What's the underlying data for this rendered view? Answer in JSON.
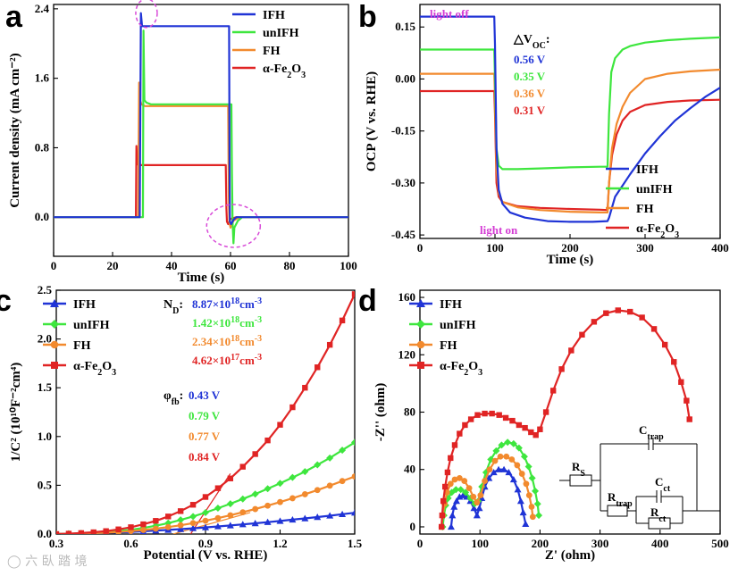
{
  "chart_data": [
    {
      "panel": "a",
      "type": "line",
      "xlabel": "Time (s)",
      "ylabel": "Current density (mA cm⁻²)",
      "xlim": [
        0,
        100
      ],
      "ylim": [
        -0.45,
        2.45
      ],
      "xticks": [
        0,
        20,
        40,
        60,
        80,
        100
      ],
      "yticks": [
        0.0,
        0.8,
        1.6,
        2.4
      ],
      "ytick_labels": [
        "0.0",
        "0.8",
        "1.6",
        "2.4"
      ],
      "legend_position": "top-right",
      "series": [
        {
          "name": "IFH",
          "color": "#2034d6",
          "x": [
            0,
            29.2,
            29.6,
            30.0,
            30.6,
            59.5,
            59.7,
            59.8,
            60.2,
            61,
            62,
            64,
            100
          ],
          "y": [
            0,
            0,
            2.35,
            2.2,
            2.2,
            2.2,
            0.4,
            -0.05,
            -0.08,
            -0.03,
            0,
            0,
            0
          ]
        },
        {
          "name": "unIFH",
          "color": "#3ee63e",
          "x": [
            0,
            30.3,
            30.5,
            30.8,
            31.5,
            33,
            60.3,
            60.5,
            60.7,
            61,
            61.3,
            62.5,
            64,
            100
          ],
          "y": [
            0,
            0,
            2.15,
            1.35,
            1.32,
            1.3,
            1.3,
            0.5,
            -0.05,
            -0.3,
            -0.12,
            -0.04,
            0,
            0
          ]
        },
        {
          "name": "FH",
          "color": "#f28a2e",
          "x": [
            0,
            28.7,
            29,
            29.3,
            29.8,
            31,
            59.2,
            59.4,
            59.6,
            60,
            61,
            63,
            100
          ],
          "y": [
            0,
            0,
            1.55,
            1.35,
            1.3,
            1.28,
            1.28,
            0.3,
            -0.05,
            -0.12,
            -0.04,
            0,
            0
          ]
        },
        {
          "name": "α-Fe₂O₃",
          "color": "#e02424",
          "x": [
            0,
            27.9,
            28.1,
            28.3,
            28.8,
            30,
            58.4,
            58.6,
            58.8,
            59.2,
            60,
            62,
            100
          ],
          "y": [
            0,
            0,
            0.82,
            0.62,
            0.6,
            0.6,
            0.6,
            0.1,
            -0.05,
            -0.08,
            -0.02,
            0,
            0
          ]
        }
      ],
      "annotations": [
        "dashed circle near spike at t≈30 s",
        "dashed circle near transient at t≈60 s"
      ]
    },
    {
      "panel": "b",
      "type": "line",
      "xlabel": "Time (s)",
      "ylabel": "OCP (V vs. RHE)",
      "xlim": [
        0,
        400
      ],
      "ylim": [
        -0.46,
        0.215
      ],
      "xticks": [
        0,
        100,
        200,
        300,
        400
      ],
      "yticks": [
        -0.45,
        -0.3,
        -0.15,
        0.0,
        0.15
      ],
      "ytick_labels": [
        "-0.45",
        "-0.30",
        "-0.15",
        "0.00",
        "0.15"
      ],
      "legend_position": "bottom-right",
      "text": {
        "light_off": "light off",
        "light_on": "light on",
        "delta_voc_title": "△V",
        "delta_voc_sub": "OC",
        "delta_voc_colon": ":"
      },
      "delta_voc": [
        {
          "series": "IFH",
          "label": "0.56 V",
          "color": "#2034d6"
        },
        {
          "series": "unIFH",
          "label": "0.35 V",
          "color": "#3ee63e"
        },
        {
          "series": "FH",
          "label": "0.36 V",
          "color": "#f28a2e"
        },
        {
          "series": "α-Fe₂O₃",
          "label": "0.31 V",
          "color": "#e02424"
        }
      ],
      "series": [
        {
          "name": "IFH",
          "color": "#2034d6",
          "x": [
            0,
            99,
            100,
            102,
            105,
            110,
            120,
            140,
            170,
            200,
            230,
            250,
            252,
            260,
            280,
            300,
            320,
            340,
            360,
            380,
            400
          ],
          "y": [
            0.18,
            0.18,
            0.1,
            -0.2,
            -0.32,
            -0.36,
            -0.385,
            -0.4,
            -0.41,
            -0.412,
            -0.412,
            -0.41,
            -0.4,
            -0.34,
            -0.275,
            -0.215,
            -0.165,
            -0.12,
            -0.085,
            -0.052,
            -0.025
          ]
        },
        {
          "name": "unIFH",
          "color": "#3ee63e",
          "x": [
            0,
            99,
            100,
            102,
            105,
            110,
            130,
            160,
            200,
            240,
            250,
            252,
            255,
            260,
            270,
            280,
            300,
            330,
            360,
            400
          ],
          "y": [
            0.085,
            0.085,
            0.0,
            -0.2,
            -0.25,
            -0.26,
            -0.26,
            -0.258,
            -0.255,
            -0.253,
            -0.253,
            -0.1,
            0.02,
            0.06,
            0.085,
            0.095,
            0.105,
            0.112,
            0.116,
            0.12
          ]
        },
        {
          "name": "FH",
          "color": "#f28a2e",
          "x": [
            0,
            99,
            100,
            102,
            105,
            110,
            130,
            160,
            200,
            240,
            250,
            252,
            256,
            262,
            270,
            280,
            300,
            330,
            360,
            400
          ],
          "y": [
            0.015,
            0.015,
            -0.05,
            -0.26,
            -0.33,
            -0.355,
            -0.37,
            -0.378,
            -0.383,
            -0.385,
            -0.385,
            -0.3,
            -0.2,
            -0.13,
            -0.08,
            -0.04,
            0.0,
            0.015,
            0.022,
            0.027
          ]
        },
        {
          "name": "α-Fe₂O₃",
          "color": "#e02424",
          "x": [
            0,
            99,
            100,
            102,
            105,
            110,
            130,
            160,
            200,
            240,
            250,
            252,
            256,
            262,
            270,
            280,
            300,
            330,
            360,
            400
          ],
          "y": [
            -0.035,
            -0.035,
            -0.1,
            -0.3,
            -0.34,
            -0.355,
            -0.367,
            -0.372,
            -0.375,
            -0.377,
            -0.378,
            -0.3,
            -0.22,
            -0.16,
            -0.12,
            -0.095,
            -0.075,
            -0.066,
            -0.062,
            -0.06
          ]
        }
      ]
    },
    {
      "panel": "c",
      "type": "line",
      "xlabel": "Potential (V vs. RHE)",
      "ylabel": "1/C² (10¹⁰F⁻²cm⁴)",
      "xlim": [
        0.3,
        1.5
      ],
      "ylim": [
        0,
        2.5
      ],
      "xticks": [
        0.3,
        0.6,
        0.9,
        1.2,
        1.5
      ],
      "xtick_labels": [
        "0.3",
        "0.6",
        "0.9",
        "1.2",
        "1.5"
      ],
      "yticks": [
        0.0,
        0.5,
        1.0,
        1.5,
        2.0,
        2.5
      ],
      "ytick_labels": [
        "0.0",
        "0.5",
        "1.0",
        "1.5",
        "2.0",
        "2.5"
      ],
      "legend_position": "top-left",
      "text": {
        "nd_label": "N",
        "nd_sub": "D",
        "nd_colon": ":",
        "phi_label": "φ",
        "phi_sub": "fb",
        "phi_colon": ":"
      },
      "nd": [
        {
          "series": "IFH",
          "mant": "8.87×10",
          "exp": "18",
          "unit": "cm",
          "unit_exp": "-3",
          "color": "#2034d6"
        },
        {
          "series": "unIFH",
          "mant": "1.42×10",
          "exp": "18",
          "unit": "cm",
          "unit_exp": "-3",
          "color": "#3ee63e"
        },
        {
          "series": "FH",
          "mant": "2.34×10",
          "exp": "18",
          "unit": "cm",
          "unit_exp": "-3",
          "color": "#f28a2e"
        },
        {
          "series": "α-Fe₂O₃",
          "mant": "4.62×10",
          "exp": "17",
          "unit": "cm",
          "unit_exp": "-3",
          "color": "#e02424"
        }
      ],
      "phi_fb": [
        {
          "series": "IFH",
          "label": "0.43 V",
          "color": "#2034d6"
        },
        {
          "series": "unIFH",
          "label": "0.79 V",
          "color": "#3ee63e"
        },
        {
          "series": "FH",
          "label": "0.77 V",
          "color": "#f28a2e"
        },
        {
          "series": "α-Fe₂O₃",
          "label": "0.84 V",
          "color": "#e02424"
        }
      ],
      "fit_lines": [
        {
          "color": "#e02424",
          "x": [
            0.84,
            1.0
          ],
          "y": [
            0.0,
            0.62
          ]
        },
        {
          "color": "#f28a2e",
          "x": [
            0.77,
            1.08
          ],
          "y": [
            0.0,
            0.22
          ]
        }
      ],
      "series": [
        {
          "name": "IFH",
          "color": "#2034d6",
          "marker": "triangle",
          "x": [
            0.3,
            0.35,
            0.4,
            0.45,
            0.5,
            0.55,
            0.6,
            0.65,
            0.7,
            0.75,
            0.8,
            0.85,
            0.9,
            0.95,
            1.0,
            1.05,
            1.1,
            1.15,
            1.2,
            1.25,
            1.3,
            1.35,
            1.4,
            1.45,
            1.5
          ],
          "y": [
            0.0,
            0.002,
            0.005,
            0.008,
            0.012,
            0.017,
            0.022,
            0.028,
            0.035,
            0.042,
            0.05,
            0.059,
            0.068,
            0.078,
            0.088,
            0.099,
            0.11,
            0.122,
            0.134,
            0.147,
            0.16,
            0.174,
            0.188,
            0.203,
            0.218
          ]
        },
        {
          "name": "unIFH",
          "color": "#3ee63e",
          "marker": "diamond",
          "x": [
            0.3,
            0.35,
            0.4,
            0.45,
            0.5,
            0.55,
            0.6,
            0.65,
            0.7,
            0.75,
            0.8,
            0.85,
            0.9,
            0.95,
            1.0,
            1.05,
            1.1,
            1.15,
            1.2,
            1.25,
            1.3,
            1.35,
            1.4,
            1.45,
            1.5
          ],
          "y": [
            0.0,
            0.003,
            0.007,
            0.012,
            0.02,
            0.03,
            0.044,
            0.062,
            0.085,
            0.112,
            0.145,
            0.18,
            0.22,
            0.265,
            0.31,
            0.36,
            0.41,
            0.465,
            0.52,
            0.58,
            0.64,
            0.71,
            0.78,
            0.86,
            0.94
          ]
        },
        {
          "name": "FH",
          "color": "#f28a2e",
          "marker": "circle",
          "x": [
            0.3,
            0.35,
            0.4,
            0.45,
            0.5,
            0.55,
            0.6,
            0.65,
            0.7,
            0.75,
            0.8,
            0.85,
            0.9,
            0.95,
            1.0,
            1.05,
            1.1,
            1.15,
            1.2,
            1.25,
            1.3,
            1.35,
            1.4,
            1.45,
            1.5
          ],
          "y": [
            0.0,
            0.002,
            0.005,
            0.009,
            0.014,
            0.021,
            0.03,
            0.041,
            0.055,
            0.071,
            0.09,
            0.112,
            0.136,
            0.163,
            0.192,
            0.223,
            0.256,
            0.291,
            0.328,
            0.367,
            0.408,
            0.451,
            0.496,
            0.543,
            0.59
          ]
        },
        {
          "name": "α-Fe₂O₃",
          "color": "#e02424",
          "marker": "square",
          "x": [
            0.3,
            0.35,
            0.4,
            0.45,
            0.5,
            0.55,
            0.6,
            0.65,
            0.7,
            0.75,
            0.8,
            0.85,
            0.9,
            0.95,
            1.0,
            1.05,
            1.1,
            1.15,
            1.2,
            1.25,
            1.3,
            1.35,
            1.4,
            1.45,
            1.5
          ],
          "y": [
            0.0,
            0.004,
            0.01,
            0.018,
            0.03,
            0.048,
            0.07,
            0.1,
            0.135,
            0.18,
            0.235,
            0.3,
            0.38,
            0.47,
            0.57,
            0.69,
            0.82,
            0.96,
            1.12,
            1.3,
            1.5,
            1.71,
            1.94,
            2.19,
            2.46
          ]
        }
      ]
    },
    {
      "panel": "d",
      "type": "scatter",
      "xlabel": "Z' (ohm)",
      "ylabel": "-Z'' (ohm)",
      "xlim": [
        0,
        500
      ],
      "ylim": [
        -5,
        165
      ],
      "xticks": [
        0,
        100,
        200,
        300,
        400,
        500
      ],
      "yticks": [
        0,
        40,
        80,
        120,
        160
      ],
      "legend_position": "top-left",
      "circuit_labels": {
        "rs": "R",
        "rs_sub": "S",
        "ctrap": "C",
        "ctrap_sub": "trap",
        "rtrap": "R",
        "rtrap_sub": "trap",
        "cct": "C",
        "cct_sub": "ct",
        "rct": "R",
        "rct_sub": "ct"
      },
      "series": [
        {
          "name": "IFH",
          "color": "#2034d6",
          "marker": "triangle",
          "x": [
            52,
            54,
            57,
            61,
            66,
            72,
            78,
            84,
            90,
            95,
            99,
            103,
            108,
            115,
            123,
            131,
            140,
            148,
            156,
            163,
            168,
            172,
            176
          ],
          "y": [
            0,
            8,
            14,
            18,
            21,
            22,
            21,
            18,
            13,
            8,
            13,
            20,
            28,
            34,
            38,
            40,
            40,
            38,
            33,
            26,
            18,
            10,
            2
          ]
        },
        {
          "name": "unIFH",
          "color": "#3ee63e",
          "marker": "diamond",
          "x": [
            38,
            40,
            43,
            47,
            53,
            60,
            68,
            76,
            84,
            91,
            97,
            103,
            110,
            118,
            127,
            136,
            146,
            156,
            165,
            174,
            181,
            187,
            192,
            196,
            198
          ],
          "y": [
            0,
            8,
            15,
            20,
            24,
            26,
            26,
            24,
            20,
            16,
            18,
            28,
            38,
            47,
            53,
            57,
            59,
            58,
            55,
            49,
            42,
            34,
            25,
            16,
            8
          ]
        },
        {
          "name": "FH",
          "color": "#f28a2e",
          "marker": "circle",
          "x": [
            36,
            38,
            41,
            45,
            51,
            58,
            66,
            74,
            82,
            89,
            95,
            101,
            108,
            116,
            125,
            134,
            144,
            153,
            162,
            170,
            177,
            182,
            186,
            188
          ],
          "y": [
            0,
            8,
            16,
            24,
            30,
            33,
            34,
            32,
            27,
            21,
            17,
            22,
            32,
            40,
            46,
            49,
            49,
            47,
            43,
            37,
            30,
            22,
            14,
            7
          ]
        },
        {
          "name": "α-Fe₂O₃",
          "color": "#e02424",
          "marker": "square",
          "x": [
            36,
            37,
            39,
            42,
            46,
            51,
            58,
            66,
            75,
            85,
            96,
            108,
            120,
            132,
            143,
            154,
            165,
            175,
            185,
            193,
            200,
            210,
            222,
            236,
            252,
            270,
            290,
            310,
            330,
            350,
            370,
            390,
            408,
            423,
            435,
            444,
            449
          ],
          "y": [
            0,
            8,
            18,
            28,
            38,
            48,
            57,
            65,
            71,
            75,
            78,
            79,
            79,
            78,
            76,
            74,
            71,
            69,
            66,
            64,
            68,
            80,
            95,
            110,
            123,
            134,
            143,
            149,
            151,
            150,
            146,
            138,
            127,
            115,
            101,
            88,
            75
          ]
        }
      ]
    }
  ]
}
